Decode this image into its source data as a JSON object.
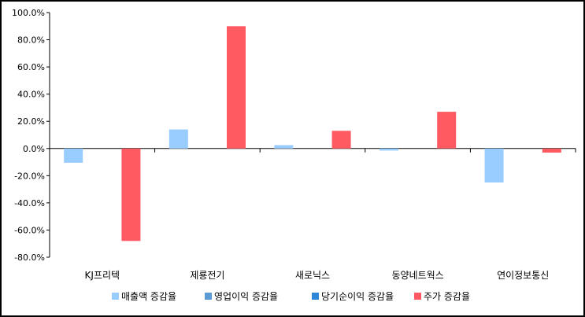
{
  "chart_data": {
    "type": "bar",
    "title": "",
    "xlabel": "",
    "ylabel": "",
    "categories": [
      "KJ프리텍",
      "제룡전기",
      "새로닉스",
      "동양네트웍스",
      "연이정보통신"
    ],
    "series": [
      {
        "name": "매출액 증감율",
        "color": "#99CCFF",
        "values": [
          -10.5,
          14.0,
          2.5,
          -1.5,
          -25.0
        ]
      },
      {
        "name": "영업이익 증감율",
        "color": "#5B9BD5",
        "values": [
          null,
          null,
          null,
          null,
          null
        ]
      },
      {
        "name": "당기순이익 증감율",
        "color": "#2E86D8",
        "values": [
          null,
          null,
          null,
          null,
          null
        ]
      },
      {
        "name": "주가 증감율",
        "color": "#FF5A61",
        "values": [
          -68.0,
          90.0,
          13.0,
          27.0,
          -3.0
        ]
      }
    ],
    "ylim": [
      -80,
      100
    ],
    "yticks": [
      100,
      80,
      60,
      40,
      20,
      0,
      -20,
      -40,
      -60,
      -80
    ],
    "ytick_labels": [
      "100.0%",
      "80.0%",
      "60.0%",
      "40.0%",
      "20.0%",
      "0.0%",
      "-20.0%",
      "-40.0%",
      "-60.0%",
      "-80.0%"
    ],
    "grid": false,
    "legend_position": "bottom"
  }
}
